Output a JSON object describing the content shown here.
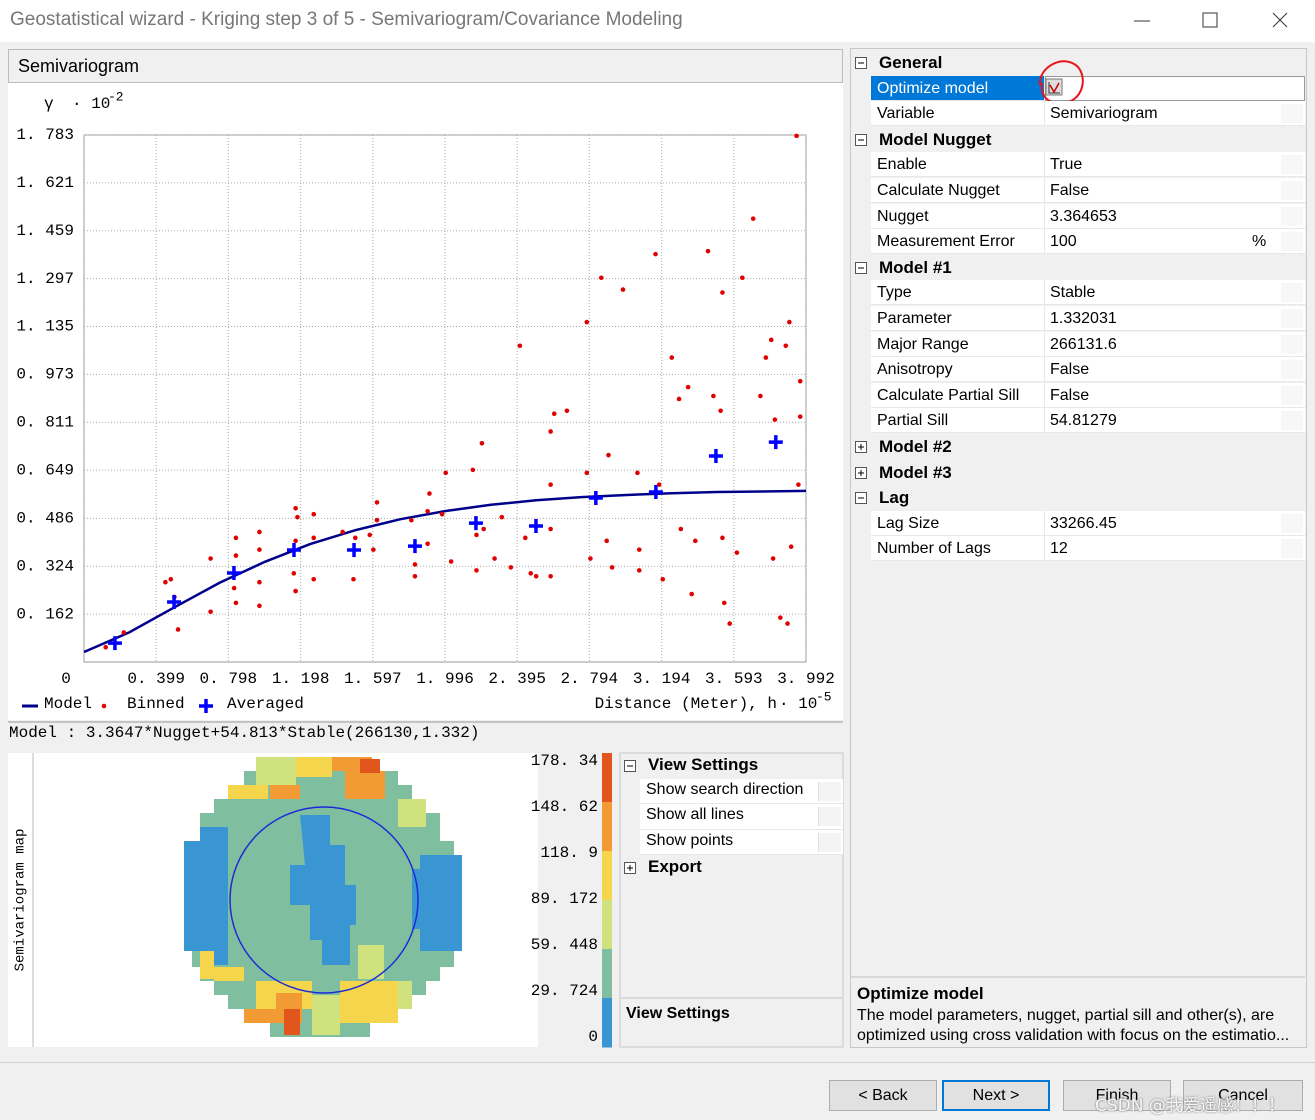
{
  "window": {
    "title": "Geostatistical wizard - Kriging step 3 of 5 - Semivariogram/Covariance Modeling"
  },
  "chart_data": {
    "type": "scatter",
    "title": "Semivariogram",
    "ylabel": "γ",
    "ylabel_factor": "· 10",
    "ylabel_exponent": "-2",
    "xlabel": "Distance (Meter), h",
    "xlabel_factor": "· 10",
    "xlabel_exponent": "-5",
    "xlim": [
      0,
      3.992
    ],
    "ylim": [
      0,
      1.783
    ],
    "xticks": [
      0,
      {
        "value": 0.399,
        "label": "0. 399"
      },
      {
        "value": 0.798,
        "label": "0. 798"
      },
      {
        "value": 1.198,
        "label": "1. 198"
      },
      {
        "value": 1.597,
        "label": "1. 597"
      },
      {
        "value": 1.996,
        "label": "1. 996"
      },
      {
        "value": 2.395,
        "label": "2. 395"
      },
      {
        "value": 2.794,
        "label": "2. 794"
      },
      {
        "value": 3.194,
        "label": "3. 194"
      },
      {
        "value": 3.593,
        "label": "3. 593"
      },
      {
        "value": 3.992,
        "label": "3. 992"
      }
    ],
    "yticks": [
      {
        "value": 0.162,
        "label": "0. 162"
      },
      {
        "value": 0.324,
        "label": "0. 324"
      },
      {
        "value": 0.486,
        "label": "0. 486"
      },
      {
        "value": 0.649,
        "label": "0. 649"
      },
      {
        "value": 0.811,
        "label": "0. 811"
      },
      {
        "value": 0.973,
        "label": "0. 973"
      },
      {
        "value": 1.135,
        "label": "1. 135"
      },
      {
        "value": 1.297,
        "label": "1. 297"
      },
      {
        "value": 1.459,
        "label": "1. 459"
      },
      {
        "value": 1.621,
        "label": "1. 621"
      },
      {
        "value": 1.783,
        "label": "1. 783"
      }
    ],
    "grid": true,
    "series": [
      {
        "name": "Model",
        "type": "line",
        "color": "#00008b",
        "x": [
          0,
          0.25,
          0.5,
          0.75,
          1,
          1.25,
          1.5,
          1.75,
          2,
          2.25,
          2.5,
          2.75,
          3,
          3.25,
          3.5,
          3.75,
          3.992
        ],
        "values": [
          0.034,
          0.1,
          0.185,
          0.268,
          0.339,
          0.399,
          0.446,
          0.483,
          0.511,
          0.532,
          0.547,
          0.558,
          0.565,
          0.571,
          0.575,
          0.577,
          0.579
        ]
      },
      {
        "name": "Binned",
        "type": "scatter",
        "color": "#e00000",
        "x": [
          0.22,
          0.12,
          0.45,
          0.5,
          0.52,
          0.48,
          0.7,
          0.7,
          0.84,
          0.84,
          0.83,
          0.84,
          0.97,
          0.97,
          0.97,
          0.97,
          1.17,
          1.18,
          1.17,
          1.16,
          1.17,
          1.27,
          1.27,
          1.27,
          1.43,
          1.5,
          1.58,
          1.6,
          1.49,
          1.62,
          1.62,
          1.81,
          1.83,
          1.83,
          1.9,
          1.9,
          1.91,
          2.0,
          1.98,
          2.03,
          2.15,
          2.17,
          2.17,
          2.2,
          2.21,
          2.27,
          2.31,
          2.36,
          2.41,
          2.44,
          2.47,
          2.5,
          2.58,
          2.6,
          2.58,
          2.58,
          2.58,
          2.67,
          2.78,
          2.78,
          2.8,
          2.86,
          2.89,
          2.9,
          2.92,
          2.98,
          3.06,
          3.07,
          3.07,
          3.16,
          3.18,
          3.2,
          3.25,
          3.29,
          3.3,
          3.34,
          3.36,
          3.38,
          3.45,
          3.48,
          3.52,
          3.53,
          3.53,
          3.54,
          3.57,
          3.61,
          3.64,
          3.7,
          3.74,
          3.77,
          3.8,
          3.81,
          3.82,
          3.85,
          3.88,
          3.89,
          3.91,
          3.94,
          3.95,
          3.96,
          3.96,
          3.9
        ],
        "values": [
          0.1,
          0.05,
          0.27,
          0.22,
          0.11,
          0.28,
          0.35,
          0.17,
          0.42,
          0.36,
          0.25,
          0.2,
          0.38,
          0.44,
          0.27,
          0.19,
          0.52,
          0.49,
          0.41,
          0.3,
          0.24,
          0.5,
          0.42,
          0.28,
          0.44,
          0.42,
          0.43,
          0.38,
          0.28,
          0.54,
          0.48,
          0.48,
          0.33,
          0.29,
          0.51,
          0.4,
          0.57,
          0.64,
          0.5,
          0.34,
          0.65,
          0.43,
          0.31,
          0.74,
          0.45,
          0.35,
          0.49,
          0.32,
          1.07,
          0.42,
          0.3,
          0.29,
          0.78,
          0.84,
          0.6,
          0.45,
          0.29,
          0.85,
          1.15,
          0.64,
          0.35,
          1.3,
          0.41,
          0.7,
          0.32,
          1.26,
          0.64,
          0.31,
          0.38,
          1.38,
          0.6,
          0.28,
          1.03,
          0.89,
          0.45,
          0.93,
          0.23,
          0.41,
          1.39,
          0.9,
          0.85,
          1.25,
          0.42,
          0.2,
          0.13,
          0.37,
          1.3,
          1.5,
          0.9,
          1.03,
          1.09,
          0.35,
          0.82,
          0.15,
          1.07,
          0.13,
          0.39,
          1.78,
          0.6,
          0.95,
          0.83,
          1.15
        ]
      },
      {
        "name": "Averaged",
        "type": "cross",
        "color": "#0000ff",
        "x": [
          0.171,
          0.498,
          0.829,
          1.161,
          1.493,
          1.83,
          2.167,
          2.499,
          2.83,
          3.162,
          3.494,
          3.825
        ],
        "values": [
          0.064,
          0.203,
          0.301,
          0.379,
          0.379,
          0.392,
          0.47,
          0.46,
          0.555,
          0.575,
          0.697,
          0.744
        ]
      }
    ],
    "model_text": "Model : 3.3647*Nugget+54.813*Stable(266130,1.332)"
  },
  "map": {
    "title": "Semivariogram map",
    "colorbar": {
      "lim": [
        0,
        178.34
      ],
      "ticks": [
        {
          "value": 178.34,
          "label": "178. 34"
        },
        {
          "value": 148.62,
          "label": "148. 62"
        },
        {
          "value": 118.9,
          "label": "118. 9"
        },
        {
          "value": 89.172,
          "label": "89. 172"
        },
        {
          "value": 59.448,
          "label": "59. 448"
        },
        {
          "value": 29.724,
          "label": "29. 724"
        },
        0
      ],
      "colors": [
        "#e0561c",
        "#f29a34",
        "#f5d54c",
        "#cfe27e",
        "#7fbf9f",
        "#3a96d2"
      ]
    }
  },
  "view_settings": {
    "sections": [
      {
        "title": "View Settings",
        "expanded": true,
        "rows": [
          "Show search direction",
          "Show all lines",
          "Show points"
        ]
      },
      {
        "title": "Export",
        "expanded": false
      }
    ],
    "description": "View Settings"
  },
  "properties": {
    "sections": [
      {
        "title": "General",
        "expanded": true,
        "rows": [
          {
            "name": "Optimize model",
            "selected": true
          },
          {
            "name": "Variable",
            "value": "Semivariogram"
          }
        ]
      },
      {
        "title": "Model Nugget",
        "expanded": true,
        "rows": [
          {
            "name": "Enable",
            "value": "True"
          },
          {
            "name": "Calculate Nugget",
            "value": "False"
          },
          {
            "name": "Nugget",
            "value": "3.364653"
          },
          {
            "name": "Measurement Error",
            "value": "100",
            "unit": "%"
          }
        ]
      },
      {
        "title": "Model #1",
        "expanded": true,
        "rows": [
          {
            "name": "Type",
            "value": "Stable"
          },
          {
            "name": "Parameter",
            "value": "1.332031"
          },
          {
            "name": "Major Range",
            "value": "266131.6"
          },
          {
            "name": "Anisotropy",
            "value": "False"
          },
          {
            "name": "Calculate Partial Sill",
            "value": "False"
          },
          {
            "name": "Partial Sill",
            "value": "54.81279"
          }
        ]
      },
      {
        "title": "Model #2",
        "expanded": false
      },
      {
        "title": "Model #3",
        "expanded": false
      },
      {
        "title": "Lag",
        "expanded": true,
        "rows": [
          {
            "name": "Lag Size",
            "value": "33266.45"
          },
          {
            "name": "Number of Lags",
            "value": "12"
          }
        ]
      }
    ]
  },
  "description": {
    "title": "Optimize model",
    "lines": [
      "The model parameters, nugget, partial sill and other(s), are",
      "optimized using cross validation with focus on the estimatio..."
    ]
  },
  "buttons": [
    "< Back",
    "Next >",
    "Finish",
    "Cancel"
  ],
  "watermark": "CSDN @我爱遥感！！！"
}
